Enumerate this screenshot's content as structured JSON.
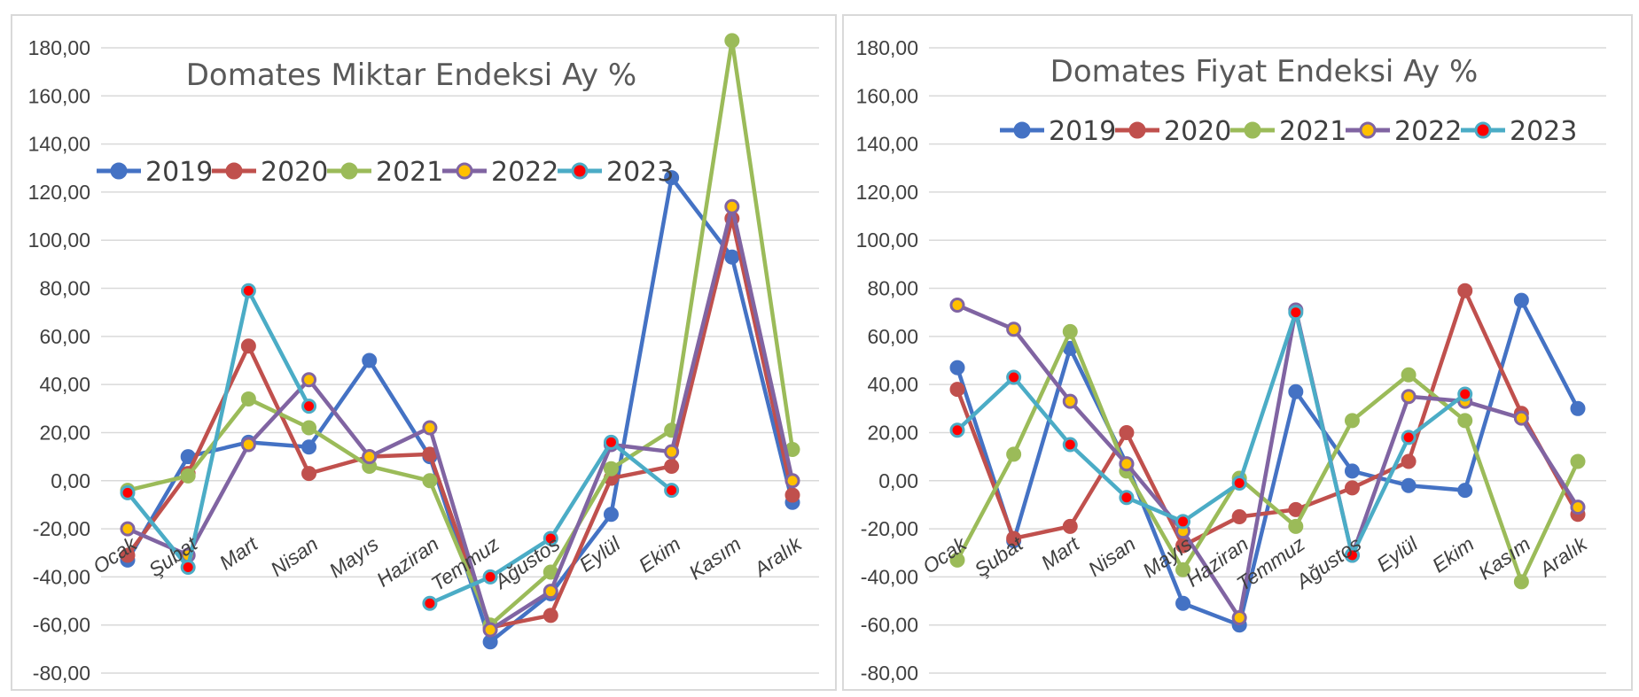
{
  "charts": [
    {
      "chart_data": {
        "type": "line",
        "title": "Domates Miktar Endeksi Ay  %",
        "categories": [
          "Ocak",
          "Şubat",
          "Mart",
          "Nisan",
          "Mayıs",
          "Haziran",
          "Temmuz",
          "Ağustos",
          "Eylül",
          "Ekim",
          "Kasım",
          "Aralık"
        ],
        "ylim": [
          -80,
          180
        ],
        "yticks": [
          "-80,00",
          "-60,00",
          "-40,00",
          "-20,00",
          "0,00",
          "20,00",
          "40,00",
          "60,00",
          "80,00",
          "100,00",
          "120,00",
          "140,00",
          "160,00",
          "180,00"
        ],
        "grid": true,
        "legend_position": "top-left",
        "series": [
          {
            "name": "2019",
            "color": "#4472C4",
            "marker_color": "#4472C4",
            "values": [
              -33,
              10,
              16,
              14,
              50,
              10,
              -67,
              -47,
              -14,
              126,
              93,
              -9
            ]
          },
          {
            "name": "2020",
            "color": "#C0504D",
            "marker_color": "#C0504D",
            "values": [
              -31,
              3,
              56,
              3,
              10,
              11,
              -61,
              -56,
              1,
              6,
              109,
              -6
            ]
          },
          {
            "name": "2021",
            "color": "#9BBB59",
            "marker_color": "#9BBB59",
            "values": [
              -4,
              2,
              34,
              22,
              6,
              0,
              -60,
              -38,
              5,
              21,
              183,
              13
            ]
          },
          {
            "name": "2022",
            "color": "#8064A2",
            "marker_color": "#FFC000",
            "values": [
              -20,
              -31,
              15,
              42,
              10,
              22,
              -62,
              -46,
              15,
              12,
              114,
              0
            ]
          },
          {
            "name": "2023",
            "color": "#4BACC6",
            "marker_color": "#FF0000",
            "values": [
              -5,
              -36,
              79,
              31,
              null,
              -51,
              -40,
              -24,
              16,
              -4,
              null,
              null
            ]
          }
        ]
      }
    },
    {
      "chart_data": {
        "type": "line",
        "title": "Domates Fiyat Endeksi Ay %",
        "categories": [
          "Ocak",
          "Şubat",
          "Mart",
          "Nisan",
          "Mayıs",
          "Haziran",
          "Temmuz",
          "Ağustos",
          "Eylül",
          "Ekim",
          "Kasım",
          "Aralık"
        ],
        "ylim": [
          -80,
          180
        ],
        "yticks": [
          "-80,00",
          "-60,00",
          "-40,00",
          "-20,00",
          "0,00",
          "20,00",
          "40,00",
          "60,00",
          "80,00",
          "100,00",
          "120,00",
          "140,00",
          "160,00",
          "180,00"
        ],
        "grid": true,
        "legend_position": "top",
        "series": [
          {
            "name": "2019",
            "color": "#4472C4",
            "marker_color": "#4472C4",
            "values": [
              47,
              -25,
              55,
              7,
              -51,
              -60,
              37,
              4,
              -2,
              -4,
              75,
              30
            ]
          },
          {
            "name": "2020",
            "color": "#C0504D",
            "marker_color": "#C0504D",
            "values": [
              38,
              -24,
              -19,
              20,
              -27,
              -15,
              -12,
              -3,
              8,
              79,
              28,
              -14
            ]
          },
          {
            "name": "2021",
            "color": "#9BBB59",
            "marker_color": "#9BBB59",
            "values": [
              -33,
              11,
              62,
              4,
              -37,
              1,
              -19,
              25,
              44,
              25,
              -42,
              8
            ]
          },
          {
            "name": "2022",
            "color": "#8064A2",
            "marker_color": "#FFC000",
            "values": [
              73,
              63,
              33,
              7,
              -21,
              -57,
              71,
              -31,
              35,
              33,
              26,
              -11
            ]
          },
          {
            "name": "2023",
            "color": "#4BACC6",
            "marker_color": "#FF0000",
            "values": [
              21,
              43,
              15,
              -7,
              -17,
              -1,
              70,
              -31,
              18,
              36,
              null,
              null
            ]
          }
        ]
      }
    }
  ]
}
